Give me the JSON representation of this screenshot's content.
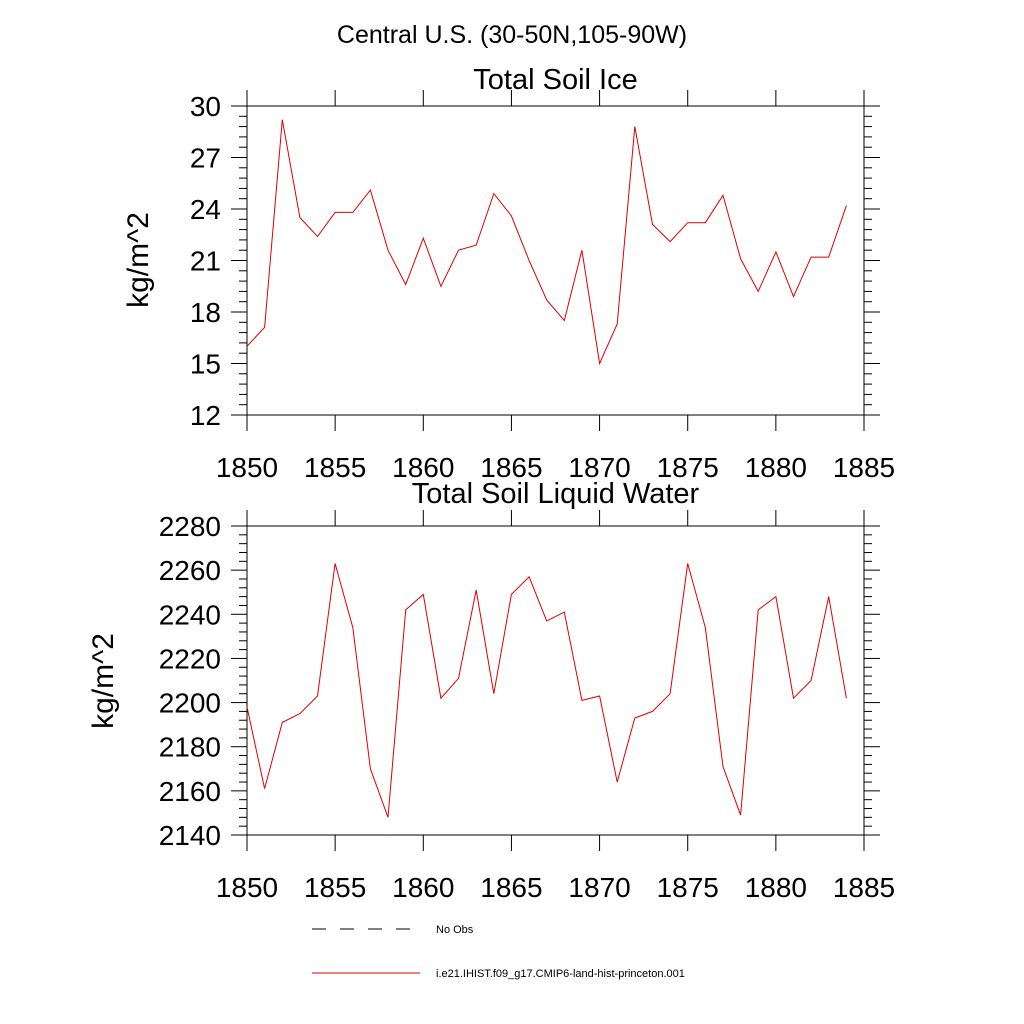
{
  "page": {
    "title": "Central U.S. (30-50N,105-90W)"
  },
  "colors": {
    "series": "#e00000",
    "axis": "#000000"
  },
  "legend": {
    "items": [
      {
        "label": "No Obs",
        "style": "dashed",
        "color": "#000000"
      },
      {
        "label": "i.e21.IHIST.f09_g17.CMIP6-land-hist-princeton.001",
        "style": "solid",
        "color": "#e00000"
      }
    ]
  },
  "chart_data": [
    {
      "type": "line",
      "title": "Total Soil Ice",
      "xlabel": "",
      "ylabel": "kg/m^2",
      "xlim": [
        1850,
        1885
      ],
      "ylim": [
        12,
        30
      ],
      "xticks": [
        1850,
        1855,
        1860,
        1865,
        1870,
        1875,
        1880,
        1885
      ],
      "yticks": [
        12,
        15,
        18,
        21,
        24,
        27,
        30
      ],
      "grid": false,
      "x": [
        1850,
        1851,
        1852,
        1853,
        1854,
        1855,
        1856,
        1857,
        1858,
        1859,
        1860,
        1861,
        1862,
        1863,
        1864,
        1865,
        1866,
        1867,
        1868,
        1869,
        1870,
        1871,
        1872,
        1873,
        1874,
        1875,
        1876,
        1877,
        1878,
        1879,
        1880,
        1881,
        1882,
        1883,
        1884
      ],
      "series": [
        {
          "name": "i.e21.IHIST.f09_g17.CMIP6-land-hist-princeton.001",
          "values": [
            16.0,
            17.1,
            29.2,
            23.5,
            22.4,
            23.8,
            23.8,
            25.1,
            21.6,
            19.6,
            22.3,
            19.5,
            21.6,
            21.9,
            24.9,
            23.6,
            21.0,
            18.7,
            17.5,
            21.6,
            15.0,
            17.3,
            28.8,
            23.1,
            22.1,
            23.2,
            23.2,
            24.8,
            21.1,
            19.2,
            21.5,
            18.9,
            21.2,
            21.2,
            24.2
          ]
        }
      ]
    },
    {
      "type": "line",
      "title": "Total Soil Liquid Water",
      "xlabel": "",
      "ylabel": "kg/m^2",
      "xlim": [
        1850,
        1885
      ],
      "ylim": [
        2140,
        2280
      ],
      "xticks": [
        1850,
        1855,
        1860,
        1865,
        1870,
        1875,
        1880,
        1885
      ],
      "yticks": [
        2140,
        2160,
        2180,
        2200,
        2220,
        2240,
        2260,
        2280
      ],
      "grid": false,
      "x": [
        1850,
        1851,
        1852,
        1853,
        1854,
        1855,
        1856,
        1857,
        1858,
        1859,
        1860,
        1861,
        1862,
        1863,
        1864,
        1865,
        1866,
        1867,
        1868,
        1869,
        1870,
        1871,
        1872,
        1873,
        1874,
        1875,
        1876,
        1877,
        1878,
        1879,
        1880,
        1881,
        1882,
        1883,
        1884
      ],
      "series": [
        {
          "name": "i.e21.IHIST.f09_g17.CMIP6-land-hist-princeton.001",
          "values": [
            2198,
            2161,
            2191,
            2195,
            2203,
            2263,
            2234,
            2170,
            2148,
            2242,
            2249,
            2202,
            2211,
            2251,
            2204,
            2249,
            2257,
            2237,
            2241,
            2201,
            2203,
            2164,
            2193,
            2196,
            2204,
            2263,
            2234,
            2171,
            2149,
            2242,
            2248,
            2202,
            2210,
            2248,
            2202
          ]
        }
      ]
    }
  ]
}
